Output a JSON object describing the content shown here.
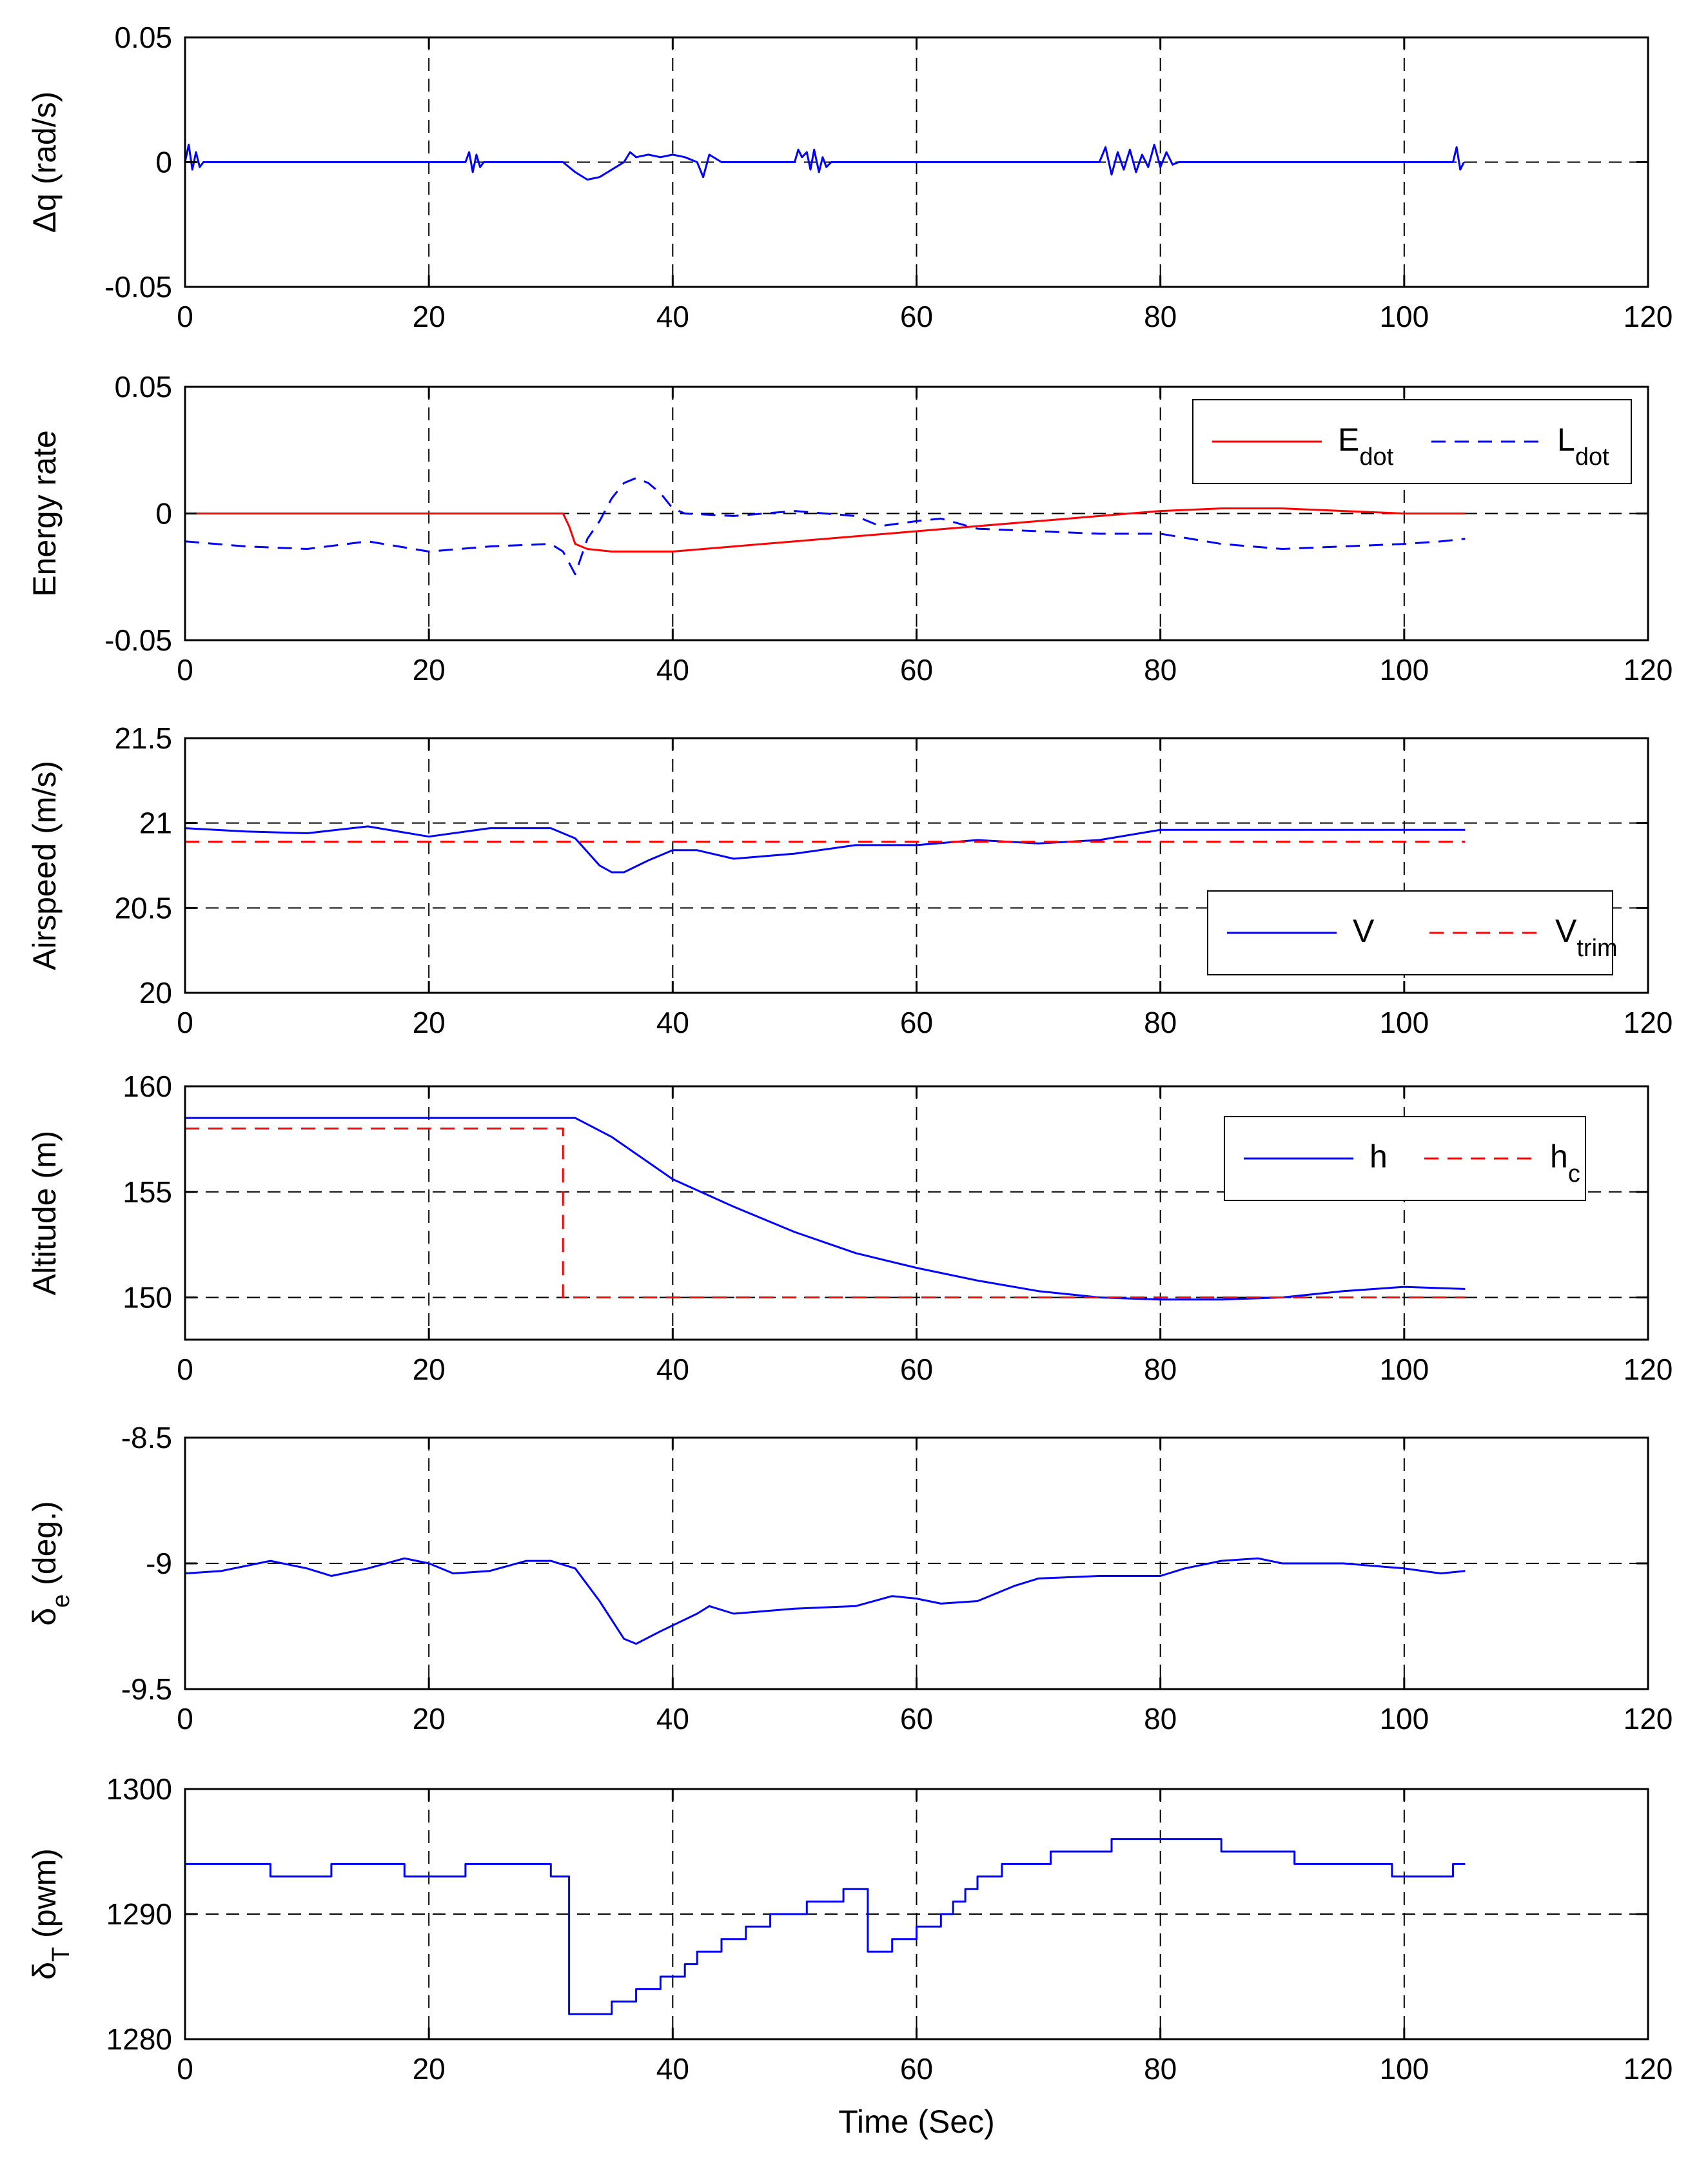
{
  "chart_data": [
    {
      "type": "line",
      "ylabel": "Δq (rad/s)",
      "xlim": [
        0,
        120
      ],
      "ylim": [
        -0.05,
        0.05
      ],
      "xticks": [
        "0",
        "20",
        "40",
        "60",
        "80",
        "100",
        "120"
      ],
      "yticks": [
        "-0.05",
        "0",
        "0.05"
      ],
      "grid": true,
      "series": [
        {
          "name": "Δq",
          "color": "#0000ff",
          "dash": "solid",
          "points": [
            [
              0,
              0
            ],
            [
              0.3,
              0.007
            ],
            [
              0.6,
              -0.003
            ],
            [
              0.9,
              0.004
            ],
            [
              1.2,
              -0.002
            ],
            [
              1.5,
              0
            ],
            [
              23,
              0
            ],
            [
              23.3,
              0.004
            ],
            [
              23.6,
              -0.004
            ],
            [
              23.9,
              0.003
            ],
            [
              24.2,
              -0.002
            ],
            [
              24.5,
              0
            ],
            [
              31,
              0
            ],
            [
              32,
              -0.004
            ],
            [
              33,
              -0.007
            ],
            [
              34,
              -0.006
            ],
            [
              35,
              -0.003
            ],
            [
              36,
              0
            ],
            [
              36.5,
              0.004
            ],
            [
              37,
              0.002
            ],
            [
              38,
              0.003
            ],
            [
              39,
              0.002
            ],
            [
              40,
              0.003
            ],
            [
              41,
              0.002
            ],
            [
              42,
              0
            ],
            [
              42.5,
              -0.006
            ],
            [
              43,
              0.003
            ],
            [
              44,
              0
            ],
            [
              50,
              0
            ],
            [
              50.3,
              0.005
            ],
            [
              50.6,
              0.002
            ],
            [
              51,
              0.004
            ],
            [
              51.3,
              -0.003
            ],
            [
              51.6,
              0.005
            ],
            [
              52,
              -0.004
            ],
            [
              52.3,
              0.002
            ],
            [
              52.6,
              -0.002
            ],
            [
              53,
              0
            ],
            [
              75,
              0
            ],
            [
              75.5,
              0.006
            ],
            [
              76,
              -0.005
            ],
            [
              76.5,
              0.004
            ],
            [
              77,
              -0.003
            ],
            [
              77.5,
              0.005
            ],
            [
              78,
              -0.004
            ],
            [
              78.5,
              0.003
            ],
            [
              79,
              -0.002
            ],
            [
              79.5,
              0.007
            ],
            [
              80,
              -0.002
            ],
            [
              80.5,
              0.004
            ],
            [
              81,
              -0.001
            ],
            [
              81.5,
              0
            ],
            [
              104,
              0
            ],
            [
              104.3,
              0.006
            ],
            [
              104.6,
              -0.003
            ],
            [
              104.9,
              0
            ]
          ]
        }
      ]
    },
    {
      "type": "line",
      "ylabel": "Energy rate",
      "xlim": [
        0,
        120
      ],
      "ylim": [
        -0.05,
        0.05
      ],
      "xticks": [
        "0",
        "20",
        "40",
        "60",
        "80",
        "100",
        "120"
      ],
      "yticks": [
        "-0.05",
        "0",
        "0.05"
      ],
      "grid": true,
      "legend_position": "top-right",
      "series": [
        {
          "name": "E",
          "subscript": "dot",
          "color": "#ff0000",
          "dash": "solid",
          "points": [
            [
              0,
              0
            ],
            [
              31,
              0
            ],
            [
              31.5,
              -0.005
            ],
            [
              32,
              -0.012
            ],
            [
              33,
              -0.014
            ],
            [
              35,
              -0.015
            ],
            [
              38,
              -0.015
            ],
            [
              40,
              -0.015
            ],
            [
              45,
              -0.013
            ],
            [
              50,
              -0.011
            ],
            [
              55,
              -0.009
            ],
            [
              60,
              -0.007
            ],
            [
              65,
              -0.005
            ],
            [
              70,
              -0.003
            ],
            [
              75,
              -0.001
            ],
            [
              80,
              0.001
            ],
            [
              85,
              0.002
            ],
            [
              90,
              0.002
            ],
            [
              95,
              0.001
            ],
            [
              100,
              0
            ],
            [
              105,
              0
            ]
          ]
        },
        {
          "name": "L",
          "subscript": "dot",
          "color": "#0000ff",
          "dash": "dashed",
          "points": [
            [
              0,
              -0.011
            ],
            [
              5,
              -0.013
            ],
            [
              10,
              -0.014
            ],
            [
              15,
              -0.011
            ],
            [
              20,
              -0.015
            ],
            [
              25,
              -0.013
            ],
            [
              30,
              -0.012
            ],
            [
              31,
              -0.015
            ],
            [
              32,
              -0.024
            ],
            [
              33,
              -0.01
            ],
            [
              34,
              -0.003
            ],
            [
              35,
              0.006
            ],
            [
              36,
              0.012
            ],
            [
              37,
              0.014
            ],
            [
              38,
              0.012
            ],
            [
              39,
              0.008
            ],
            [
              40,
              0.002
            ],
            [
              41,
              0
            ],
            [
              45,
              -0.001
            ],
            [
              50,
              0.001
            ],
            [
              55,
              -0.001
            ],
            [
              57,
              -0.005
            ],
            [
              60,
              -0.003
            ],
            [
              62,
              -0.002
            ],
            [
              65,
              -0.006
            ],
            [
              70,
              -0.007
            ],
            [
              75,
              -0.008
            ],
            [
              80,
              -0.008
            ],
            [
              85,
              -0.012
            ],
            [
              90,
              -0.014
            ],
            [
              95,
              -0.013
            ],
            [
              100,
              -0.012
            ],
            [
              103,
              -0.011
            ],
            [
              105,
              -0.01
            ]
          ]
        }
      ]
    },
    {
      "type": "line",
      "ylabel": "Airspeed (m/s)",
      "xlim": [
        0,
        120
      ],
      "ylim": [
        20,
        21.5
      ],
      "xticks": [
        "0",
        "20",
        "40",
        "60",
        "80",
        "100",
        "120"
      ],
      "yticks": [
        "20",
        "20.5",
        "21",
        "21.5"
      ],
      "grid": true,
      "legend_position": "bottom-right",
      "series": [
        {
          "name": "V",
          "color": "#0000ff",
          "dash": "solid",
          "points": [
            [
              0,
              20.97
            ],
            [
              5,
              20.95
            ],
            [
              10,
              20.94
            ],
            [
              15,
              20.98
            ],
            [
              20,
              20.92
            ],
            [
              25,
              20.97
            ],
            [
              30,
              20.97
            ],
            [
              32,
              20.91
            ],
            [
              33,
              20.83
            ],
            [
              34,
              20.75
            ],
            [
              35,
              20.71
            ],
            [
              36,
              20.71
            ],
            [
              38,
              20.78
            ],
            [
              40,
              20.84
            ],
            [
              42,
              20.84
            ],
            [
              45,
              20.79
            ],
            [
              50,
              20.82
            ],
            [
              55,
              20.87
            ],
            [
              60,
              20.87
            ],
            [
              65,
              20.9
            ],
            [
              70,
              20.88
            ],
            [
              75,
              20.9
            ],
            [
              80,
              20.96
            ],
            [
              85,
              20.96
            ],
            [
              90,
              20.96
            ],
            [
              95,
              20.96
            ],
            [
              100,
              20.96
            ],
            [
              103,
              20.96
            ],
            [
              105,
              20.96
            ]
          ]
        },
        {
          "name": "V",
          "subscript": "trim",
          "color": "#ff0000",
          "dash": "dashed",
          "points": [
            [
              0,
              20.89
            ],
            [
              105,
              20.89
            ]
          ]
        }
      ]
    },
    {
      "type": "line",
      "ylabel": "Altitude (m)",
      "xlim": [
        0,
        120
      ],
      "ylim": [
        148,
        160
      ],
      "xticks": [
        "0",
        "20",
        "40",
        "60",
        "80",
        "100",
        "120"
      ],
      "yticks": [
        "150",
        "155",
        "160"
      ],
      "grid": true,
      "legend_position": "top-right",
      "series": [
        {
          "name": "h",
          "color": "#0000ff",
          "dash": "solid",
          "points": [
            [
              0,
              158.5
            ],
            [
              10,
              158.5
            ],
            [
              20,
              158.5
            ],
            [
              30,
              158.5
            ],
            [
              32,
              158.5
            ],
            [
              35,
              157.6
            ],
            [
              38,
              156.4
            ],
            [
              40,
              155.6
            ],
            [
              45,
              154.3
            ],
            [
              50,
              153.1
            ],
            [
              55,
              152.1
            ],
            [
              60,
              151.4
            ],
            [
              65,
              150.8
            ],
            [
              70,
              150.3
            ],
            [
              75,
              150
            ],
            [
              80,
              149.9
            ],
            [
              85,
              149.9
            ],
            [
              90,
              150
            ],
            [
              95,
              150.3
            ],
            [
              100,
              150.5
            ],
            [
              105,
              150.4
            ]
          ]
        },
        {
          "name": "h",
          "subscript": "c",
          "color": "#ff0000",
          "dash": "dashed",
          "points": [
            [
              0,
              158
            ],
            [
              31,
              158
            ],
            [
              31,
              150
            ],
            [
              105,
              150
            ]
          ]
        }
      ]
    },
    {
      "type": "line",
      "ylabel": "δ",
      "ylabel_subscript": "e",
      "ylabel_suffix": " (deg.)",
      "xlim": [
        0,
        120
      ],
      "ylim": [
        -9.5,
        -8.5
      ],
      "xticks": [
        "0",
        "20",
        "40",
        "60",
        "80",
        "100",
        "120"
      ],
      "yticks": [
        "-9.5",
        "-9",
        "-8.5"
      ],
      "grid": true,
      "series": [
        {
          "name": "δe",
          "color": "#0000ff",
          "dash": "solid",
          "points": [
            [
              0,
              -9.04
            ],
            [
              3,
              -9.03
            ],
            [
              7,
              -8.99
            ],
            [
              10,
              -9.02
            ],
            [
              12,
              -9.05
            ],
            [
              15,
              -9.02
            ],
            [
              18,
              -8.98
            ],
            [
              20,
              -9
            ],
            [
              22,
              -9.04
            ],
            [
              25,
              -9.03
            ],
            [
              28,
              -8.99
            ],
            [
              30,
              -8.99
            ],
            [
              32,
              -9.02
            ],
            [
              34,
              -9.15
            ],
            [
              36,
              -9.3
            ],
            [
              37,
              -9.32
            ],
            [
              39,
              -9.27
            ],
            [
              42,
              -9.2
            ],
            [
              43,
              -9.17
            ],
            [
              45,
              -9.2
            ],
            [
              50,
              -9.18
            ],
            [
              55,
              -9.17
            ],
            [
              58,
              -9.13
            ],
            [
              60,
              -9.14
            ],
            [
              62,
              -9.16
            ],
            [
              65,
              -9.15
            ],
            [
              68,
              -9.09
            ],
            [
              70,
              -9.06
            ],
            [
              75,
              -9.05
            ],
            [
              80,
              -9.05
            ],
            [
              82,
              -9.02
            ],
            [
              85,
              -8.99
            ],
            [
              88,
              -8.98
            ],
            [
              90,
              -9
            ],
            [
              95,
              -9
            ],
            [
              100,
              -9.02
            ],
            [
              103,
              -9.04
            ],
            [
              105,
              -9.03
            ]
          ]
        }
      ]
    },
    {
      "type": "line",
      "ylabel": "δ",
      "ylabel_subscript": "T",
      "ylabel_suffix": " (pwm)",
      "xlabel": "Time (Sec)",
      "xlim": [
        0,
        120
      ],
      "ylim": [
        1280,
        1300
      ],
      "xticks": [
        "0",
        "20",
        "40",
        "60",
        "80",
        "100",
        "120"
      ],
      "yticks": [
        "1280",
        "1290",
        "1300"
      ],
      "grid": true,
      "series": [
        {
          "name": "δT",
          "color": "#0000ff",
          "dash": "solid",
          "step": true,
          "points": [
            [
              0,
              1294
            ],
            [
              7,
              1293
            ],
            [
              12,
              1294
            ],
            [
              18,
              1293
            ],
            [
              23,
              1294
            ],
            [
              30,
              1293
            ],
            [
              31.5,
              1282
            ],
            [
              35,
              1283
            ],
            [
              37,
              1284
            ],
            [
              39,
              1285
            ],
            [
              41,
              1286
            ],
            [
              42,
              1287
            ],
            [
              44,
              1288
            ],
            [
              46,
              1289
            ],
            [
              48,
              1290
            ],
            [
              51,
              1291
            ],
            [
              54,
              1292
            ],
            [
              56,
              1287
            ],
            [
              58,
              1288
            ],
            [
              60,
              1289
            ],
            [
              62,
              1290
            ],
            [
              63,
              1291
            ],
            [
              64,
              1292
            ],
            [
              65,
              1293
            ],
            [
              67,
              1294
            ],
            [
              71,
              1295
            ],
            [
              76,
              1296
            ],
            [
              85,
              1295
            ],
            [
              91,
              1294
            ],
            [
              99,
              1293
            ],
            [
              104,
              1294
            ],
            [
              105,
              1294
            ]
          ]
        }
      ]
    }
  ]
}
